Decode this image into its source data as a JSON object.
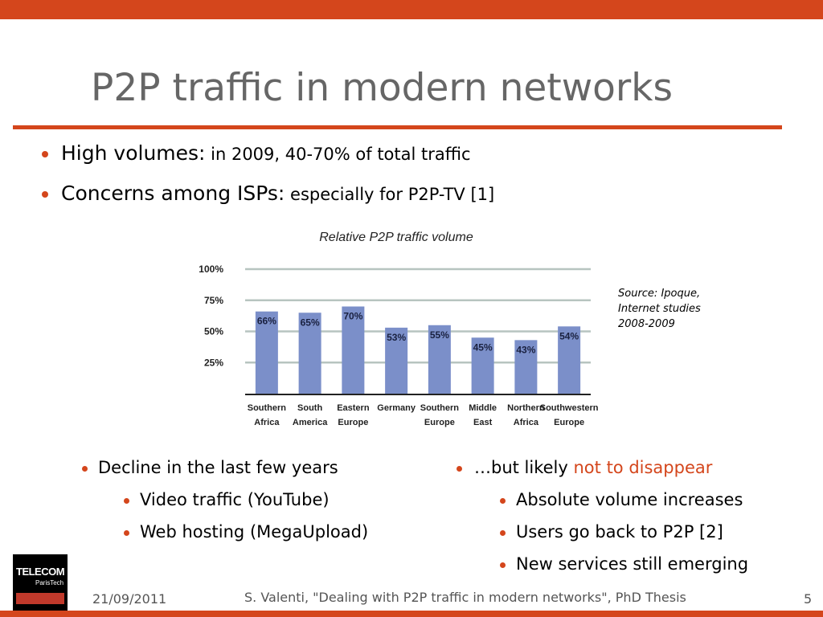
{
  "slide": {
    "title": "P2P traffic in modern networks",
    "bullets": [
      {
        "lead": "High volumes:",
        "rest": " in 2009, 40-70% of total traffic"
      },
      {
        "lead": "Concerns among ISPs:",
        "rest": " especially for P2P-TV [1]"
      }
    ],
    "source_lines": [
      "Source: Ipoque,",
      "Internet studies",
      "2008-2009"
    ],
    "left_list": {
      "main": "Decline in the last few years",
      "subs": [
        "Video traffic (YouTube)",
        "Web hosting (MegaUpload)"
      ]
    },
    "right_list": {
      "main_prefix": "…but likely ",
      "main_highlight": "not to disappear",
      "subs": [
        "Absolute volume increases",
        "Users go back to P2P [2]",
        "New services still emerging"
      ]
    },
    "logo": {
      "top": "TELECOM",
      "sub": "ParisTech"
    },
    "footer": {
      "date": "21/09/2011",
      "center": "S. Valenti, \"Dealing with P2P traffic in modern networks\", PhD Thesis",
      "page": "5"
    }
  },
  "colors": {
    "accent": "#d4461c",
    "bar": "#7b8fc9",
    "grid": "#b7c4c0",
    "title": "#666666"
  },
  "chart_data": {
    "type": "bar",
    "title": "Relative P2P traffic volume",
    "categories": [
      [
        "Southern",
        "Africa"
      ],
      [
        "South",
        "America"
      ],
      [
        "Eastern",
        "Europe"
      ],
      [
        "Germany"
      ],
      [
        "Southern",
        "Europe"
      ],
      [
        "Middle",
        "East"
      ],
      [
        "Northern",
        "Africa"
      ],
      [
        "Southwestern",
        "Europe"
      ]
    ],
    "values": [
      66,
      65,
      70,
      53,
      55,
      45,
      43,
      54
    ],
    "data_labels": [
      "66%",
      "65%",
      "70%",
      "53%",
      "55%",
      "45%",
      "43%",
      "54%"
    ],
    "yticks": [
      "100%",
      "75%",
      "50%",
      "25%"
    ],
    "ytick_values": [
      100,
      75,
      50,
      25
    ],
    "ylim": [
      0,
      100
    ],
    "grid": true
  }
}
